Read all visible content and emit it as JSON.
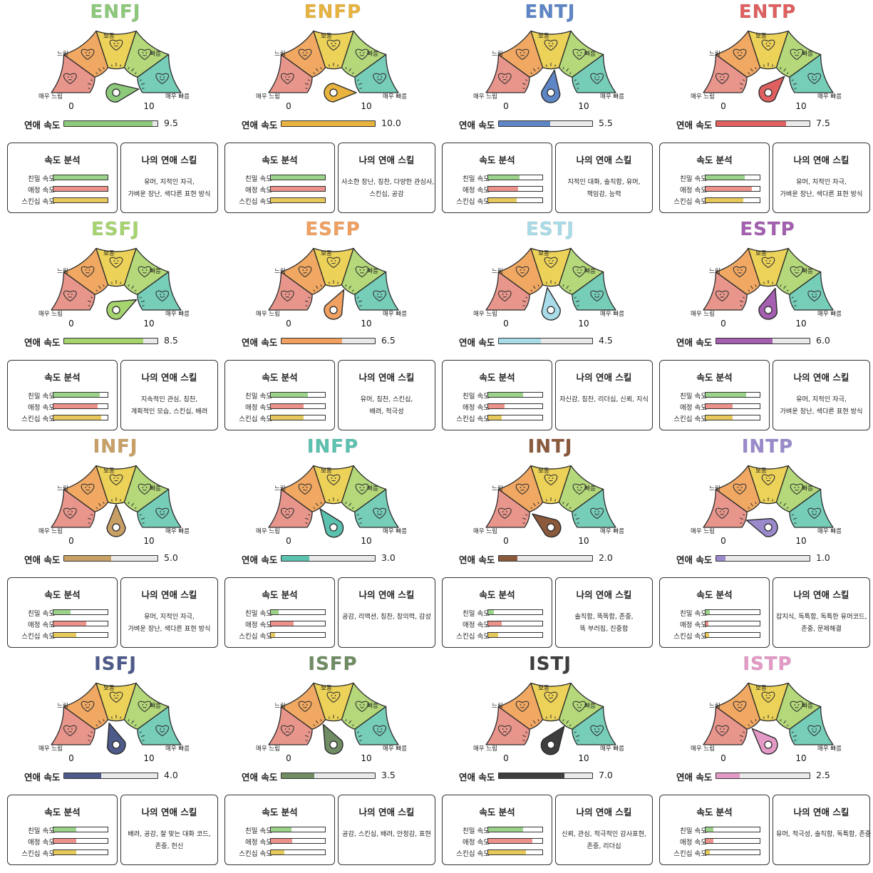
{
  "labels": {
    "very_slow": "매우 느림",
    "slow": "느림",
    "normal": "보통",
    "fast": "빠름",
    "very_fast": "매우 빠름",
    "min": "0",
    "max": "10",
    "speed_label": "연애 속도",
    "analysis_title": "속도 분석",
    "skills_title": "나의 연애 스킬",
    "intimacy": "친밀 속도",
    "affection": "애정 속도",
    "skinship": "스킨십 속도"
  },
  "colors": {
    "segments": [
      "#e8968c",
      "#f0a862",
      "#ecd258",
      "#b4d87a",
      "#76cdb8"
    ],
    "intimacy_bar": "#9bd38a",
    "affection_bar": "#ec928a",
    "skinship_bar": "#e6c95a"
  },
  "types": [
    {
      "name": "ENFJ",
      "color": "#8cc97a",
      "speed": 9.5,
      "speed_text": "9.5",
      "intimacy": 1.0,
      "affection": 1.0,
      "skinship": 1.0,
      "skills": [
        "유머, 지적인 자극,",
        "가벼운 장난, 색다른 표현 방식"
      ]
    },
    {
      "name": "ENFP",
      "color": "#e8b33e",
      "speed": 10.0,
      "speed_text": "10.0",
      "intimacy": 1.0,
      "affection": 1.0,
      "skinship": 1.0,
      "skills": [
        "사소한 장난, 칭찬, 다양한 관심사,",
        "스킨십, 공감"
      ]
    },
    {
      "name": "ENTJ",
      "color": "#5e86c6",
      "speed": 5.5,
      "speed_text": "5.5",
      "intimacy": 0.58,
      "affection": 0.55,
      "skinship": 0.52,
      "skills": [
        "지적인 대화, 솔직함, 유머,",
        "책임감, 능력"
      ]
    },
    {
      "name": "ENTP",
      "color": "#e06060",
      "speed": 7.5,
      "speed_text": "7.5",
      "intimacy": 0.72,
      "affection": 0.85,
      "skinship": 0.7,
      "skills": [
        "유머, 지적인 자극,",
        "가벼운 장난, 색다른 표현 방식"
      ]
    },
    {
      "name": "ESFJ",
      "color": "#a6d46e",
      "speed": 8.5,
      "speed_text": "8.5",
      "intimacy": 0.85,
      "affection": 0.82,
      "skinship": 0.88,
      "skills": [
        "지속적인 관심, 칭찬,",
        "계획적인 모습, 스킨십, 배려"
      ]
    },
    {
      "name": "ESFP",
      "color": "#f0a060",
      "speed": 6.5,
      "speed_text": "6.5",
      "intimacy": 0.68,
      "affection": 0.6,
      "skinship": 0.6,
      "skills": [
        "유머, 칭찬, 스킨십,",
        "배려, 적극성"
      ]
    },
    {
      "name": "ESTJ",
      "color": "#a8dce8",
      "speed": 4.5,
      "speed_text": "4.5",
      "intimacy": 0.65,
      "affection": 0.3,
      "skinship": 0.25,
      "skills": [
        "자신감, 칭찬, 리더십, 신뢰, 지식"
      ]
    },
    {
      "name": "ESTP",
      "color": "#a45fb0",
      "speed": 6.0,
      "speed_text": "6.0",
      "intimacy": 0.75,
      "affection": 0.5,
      "skinship": 0.5,
      "skills": [
        "유머, 지적인 자극,",
        "가벼운 장난, 색다른 표현 방식"
      ]
    },
    {
      "name": "INFJ",
      "color": "#c8a066",
      "speed": 5.0,
      "speed_text": "5.0",
      "intimacy": 0.32,
      "affection": 0.6,
      "skinship": 0.42,
      "skills": [
        "유머, 지적인 자극,",
        "가벼운 장난, 색다른 표현 방식"
      ]
    },
    {
      "name": "INFP",
      "color": "#5cc2b0",
      "speed": 3.0,
      "speed_text": "3.0",
      "intimacy": 0.15,
      "affection": 0.42,
      "skinship": 0.08,
      "skills": [
        "공감, 리액션, 칭찬, 창의력, 감성"
      ]
    },
    {
      "name": "INTJ",
      "color": "#8b5a3c",
      "speed": 2.0,
      "speed_text": "2.0",
      "intimacy": 0.1,
      "affection": 0.25,
      "skinship": 0.18,
      "skills": [
        "솔직함, 똑똑함, 존중,",
        "똑 부러짐, 진중함"
      ]
    },
    {
      "name": "INTP",
      "color": "#9a8acc",
      "speed": 1.0,
      "speed_text": "1.0",
      "intimacy": 0.08,
      "affection": 0.05,
      "skinship": 0.06,
      "skills": [
        "잡지식, 독특함, 독특한 유머코드,",
        "존중, 문제해결"
      ]
    },
    {
      "name": "ISFJ",
      "color": "#4d5a8a",
      "speed": 4.0,
      "speed_text": "4.0",
      "intimacy": 0.42,
      "affection": 0.42,
      "skinship": 0.42,
      "skills": [
        "배려, 공감, 잘 맞는 대화 코드,",
        "존중, 헌신"
      ]
    },
    {
      "name": "ISFP",
      "color": "#6f8c63",
      "speed": 3.5,
      "speed_text": "3.5",
      "intimacy": 0.38,
      "affection": 0.4,
      "skinship": 0.25,
      "skills": [
        "공감, 스킨십, 배려, 안정감, 표현"
      ]
    },
    {
      "name": "ISTJ",
      "color": "#3e3e3e",
      "speed": 7.0,
      "speed_text": "7.0",
      "intimacy": 0.65,
      "affection": 0.82,
      "skinship": 0.7,
      "skills": [
        "신뢰, 관심, 적극적인 감사표현,",
        "존중, 리더십"
      ]
    },
    {
      "name": "ISTP",
      "color": "#e49ac6",
      "speed": 2.5,
      "speed_text": "2.5",
      "intimacy": 0.15,
      "affection": 0.15,
      "skinship": 0.08,
      "skills": [
        "유머, 적극성, 솔직함, 독특함, 존중"
      ]
    }
  ]
}
